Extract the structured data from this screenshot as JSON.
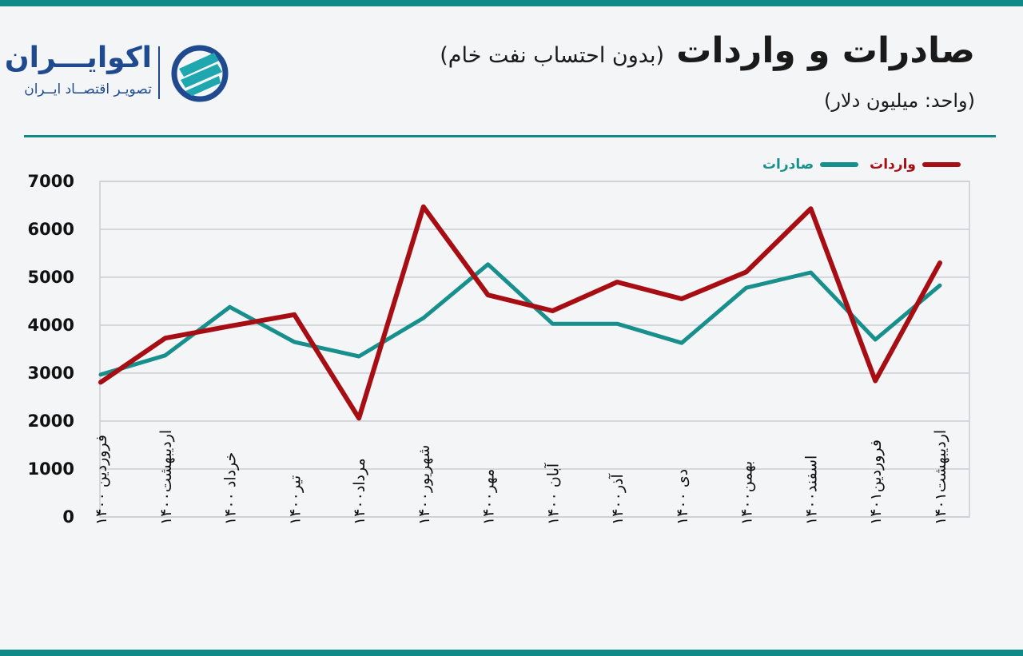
{
  "header": {
    "title": "صادرات و واردات",
    "subtitle": "(بدون احتساب نفت خام)",
    "unit": "(واحد: میلیون دلار)"
  },
  "logo": {
    "name": "اکوایـــران",
    "tagline": "تصویـر اقتصــاد ایــران",
    "brand_color": "#1f4a8f"
  },
  "colors": {
    "exports": "#178f8c",
    "imports": "#a70e14",
    "accent": "#0f8a88",
    "grid": "#c9cdd2"
  },
  "chart_data": {
    "type": "line",
    "x": [
      "فروردین ۱۴۰۰",
      "اردیبهشت۱۴۰۰",
      "خرداد ۱۴۰۰",
      "تیر۱۴۰۰",
      "مرداد۱۴۰۰",
      "شهریور۱۴۰۰",
      "مهر۱۴۰۰",
      "آبان ۱۴۰۰",
      "آذر۱۴۰۰",
      "دی ۱۴۰۰",
      "بهمن۱۴۰۰",
      "اسفند۱۴۰۰",
      "فروردین۱۴۰۱",
      "اردیبهشت۱۴۰۱"
    ],
    "series": [
      {
        "name": "صادرات",
        "values": [
          2970,
          3370,
          4380,
          3650,
          3350,
          4150,
          5270,
          4030,
          4030,
          3630,
          4780,
          5100,
          3700,
          4830
        ]
      },
      {
        "name": "واردات",
        "values": [
          2810,
          3730,
          3980,
          4220,
          2060,
          6470,
          4630,
          4300,
          4900,
          4550,
          5110,
          6430,
          2840,
          5300
        ]
      }
    ],
    "yticks": [
      "0",
      "1000",
      "2000",
      "3000",
      "4000",
      "5000",
      "6000",
      "7000"
    ],
    "ylim": [
      0,
      7000
    ],
    "grid": true,
    "legend": "top-right"
  }
}
